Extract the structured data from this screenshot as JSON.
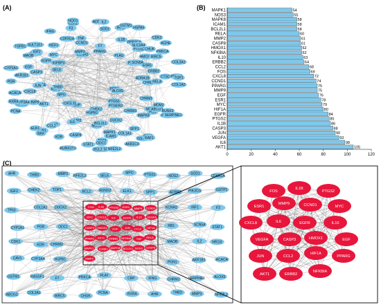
{
  "labels": {
    "a": "(A)",
    "b": "(B)",
    "c": "(C)"
  },
  "net_a": {
    "nodes": [
      "PON1",
      "ALOX5",
      "PTGS1",
      "PTGER3",
      "CHEK2",
      "HSPB1",
      "CRP",
      "CXCL11",
      "MPO",
      "HSF1",
      "THBD",
      "IGFBP3",
      "SELE",
      "KCNH2",
      "MMP3",
      "PPARG",
      "F7",
      "PLAU",
      "PLAT",
      "SCN5A",
      "ADRA1B",
      "CHRM2",
      "CHRM1",
      "CHRM3",
      "DUOX2",
      "NOS3",
      "BCL2L1",
      "MMP2",
      "IL6",
      "AKT1",
      "VEGFA",
      "JUN",
      "CASP3",
      "EGFR",
      "MYC",
      "CCND1",
      "TNF",
      "IL1B",
      "PTGS2",
      "HMOX1",
      "ESR1",
      "ERBB2",
      "RELA",
      "NFKBIA",
      "FOS",
      "MAPK8",
      "MAPK1",
      "ICAM1",
      "CASP8",
      "IL10",
      "CCL2",
      "CXCL8",
      "MMP9",
      "EGF",
      "HIF1A",
      "IGF2",
      "NCF1",
      "CDKN1A",
      "SOD1",
      "PPP3CA",
      "SLC2A4",
      "CHUK",
      "BIRC5",
      "CTSD",
      "ABCG2",
      "MDM2",
      "SPP1",
      "COL1A1",
      "TP63",
      "ODC1",
      "KDR",
      "RB1",
      "NR1I3",
      "CYP3A4",
      "ACACA",
      "AKR1B1",
      "MAOB",
      "SULT1E1",
      "F3",
      "ADRB2",
      "IRF1",
      "GSTM1",
      "PRKCA",
      "PRKCB",
      "TOP1",
      "RUNX2",
      "PIK3CG",
      "GSTP1",
      "AKR1C3",
      "RASSF1",
      "STAT1",
      "BAX",
      "ELK1",
      "PCNA",
      "RXRA",
      "CYP1A1",
      "PGR",
      "TGFB1",
      "IFNG",
      "CDK1",
      "NQO1",
      "IL2",
      "CDK2",
      "HSPA5",
      "ACHE",
      "COL3A1",
      "COL1A2",
      "SERPINE1",
      "CAV1",
      "RAF1",
      "BCL2",
      "NFE2L2",
      "RUNX1T1"
    ]
  },
  "net_c": {
    "hub_nodes": [
      "FOS",
      "IL1B",
      "PTGS2",
      "ESR1",
      "MMP9",
      "CCND1",
      "MYC",
      "CXCL8",
      "IL6",
      "EGFR",
      "IL10",
      "VEGFA",
      "CASP3",
      "HMOX1",
      "EGF",
      "JUN",
      "CCL2",
      "HIF1A",
      "PPARG",
      "AKT1",
      "ERBB2",
      "NFKBIA",
      "TNF",
      "RELA",
      "MAPK1",
      "ICAM1",
      "MAPK8",
      "BCL2L1",
      "NOS3",
      "CASP8",
      "MMP2"
    ],
    "outer_nodes": [
      "AHR",
      "THBD",
      "MMP3",
      "NFE2L2",
      "SELE",
      "MPO",
      "PTGS1",
      "NOS2",
      "SOD1",
      "CDKN1A",
      "IGF2",
      "CHEK2",
      "TOP1",
      "BCL2",
      "RUNX2",
      "ELK1",
      "SPP1",
      "ADRB2",
      "PIK3CG",
      "GSTP1",
      "TP63",
      "COL1A1",
      "DUOX2",
      "KCNH2",
      "IRF1",
      "F3",
      "CYP1A1",
      "PGR",
      "ODC1",
      "RB1",
      "SCN5A",
      "STAT1",
      "CDK1",
      "KDR",
      "CHRM2",
      "MAOB",
      "IL2",
      "NR1I3",
      "CAV1",
      "CYP3A4",
      "HSPB1",
      "PON1",
      "AKR1B1",
      "ACACA",
      "GSTM1",
      "RASSF1",
      "F7",
      "PRKCA",
      "PLAT",
      "CRP",
      "IFNG",
      "CHRM1",
      "SERPINE1",
      "ALOX5",
      "ABCG2",
      "COL3A1",
      "BIRC5",
      "CHUK",
      "PCNA",
      "RXRA"
    ],
    "colors": {
      "hub": "#e8163c",
      "outer": "#7ec8ec",
      "edge": "#6d6d6d"
    }
  },
  "chart_data": {
    "type": "bar",
    "orientation": "horizontal",
    "categories": [
      "MAPK1",
      "NOS3",
      "MAPK8",
      "ICAM1",
      "BCL2L1",
      "RELA",
      "MMP2",
      "CASP8",
      "HMOX1",
      "NFKBIA",
      "IL10",
      "ERBB2",
      "CCL2",
      "FOS",
      "CXCL8",
      "CCND1",
      "PPARG",
      "MMP9",
      "EGF",
      "ESR1",
      "MYC",
      "HIF1A",
      "EGFR",
      "PTGS2",
      "IL1B",
      "CASP3",
      "JUN",
      "VEGFA",
      "IL6",
      "AKT1"
    ],
    "values": [
      54,
      55,
      58,
      58,
      58,
      60,
      61,
      61,
      62,
      62,
      63,
      64,
      68,
      69,
      72,
      74,
      75,
      75,
      76,
      78,
      79,
      80,
      84,
      85,
      86,
      88,
      90,
      93,
      98,
      105
    ],
    "xticks": [
      0,
      20,
      40,
      60,
      80,
      100,
      120
    ],
    "xlim": [
      0,
      120
    ],
    "bar_color": "#7ec8ec"
  }
}
